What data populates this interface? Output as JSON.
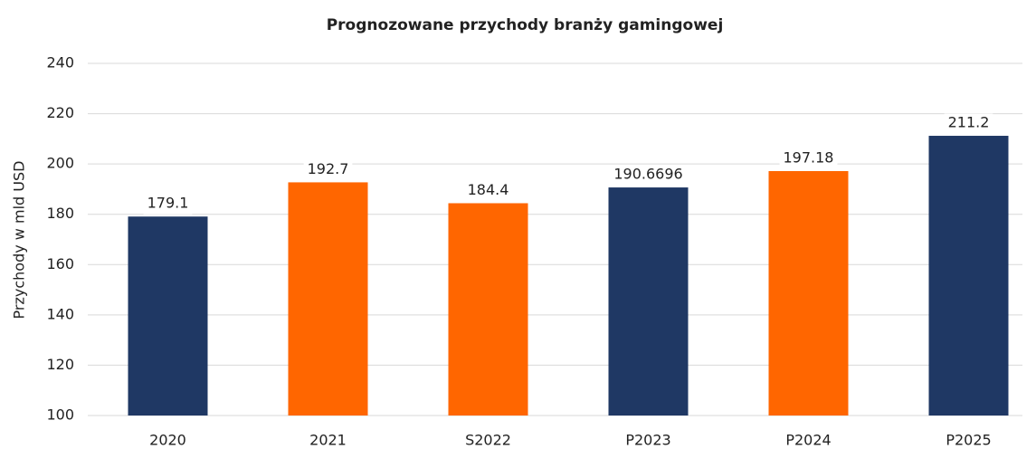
{
  "chart_data": {
    "type": "bar",
    "title": "Prognozowane przychody branży gamingowej",
    "y_label": "Przychody w mld USD",
    "categories": [
      "2020",
      "2021",
      "S2022",
      "P2023",
      "P2024",
      "P2025"
    ],
    "values": [
      179.1,
      192.7,
      184.4,
      190.6696,
      197.18,
      211.2
    ],
    "colors": [
      "#1f3864",
      "#ff6600",
      "#ff6600",
      "#1f3864",
      "#ff6600",
      "#1f3864"
    ],
    "ylim": [
      100,
      240
    ],
    "yticks": [
      100,
      120,
      140,
      160,
      180,
      200,
      220,
      240
    ],
    "grid": true
  }
}
